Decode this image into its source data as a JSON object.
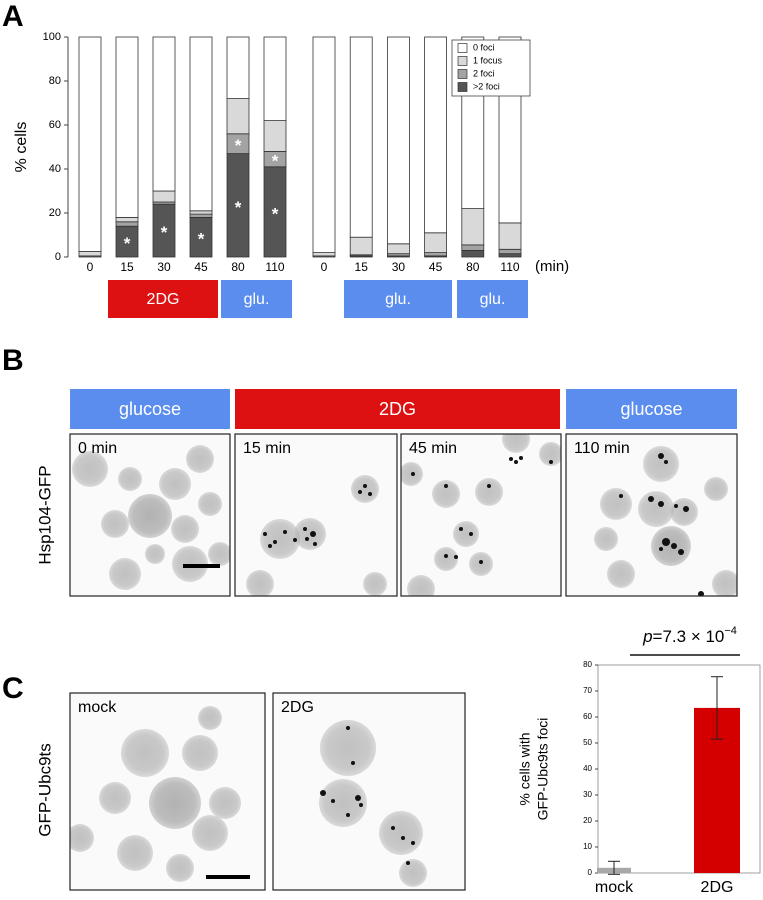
{
  "panel_labels": {
    "a": "A",
    "b": "B",
    "c": "C"
  },
  "chart_data": [
    {
      "type": "stacked_bar",
      "ylabel": "% cells",
      "categories": [
        "0",
        "15",
        "30",
        "45",
        "80",
        "110"
      ],
      "ylim": [
        0,
        100
      ],
      "yticks": [
        0,
        20,
        40,
        60,
        80,
        100
      ],
      "series": [
        {
          "color": "#ffffff",
          "values": [
            97.5,
            82,
            70,
            79,
            28,
            38
          ]
        },
        {
          "color": "#d9d9d9",
          "values": [
            2,
            2,
            5,
            1.5,
            16,
            14
          ]
        },
        {
          "color": "#a3a3a3",
          "values": [
            0.5,
            2,
            1,
            1.5,
            9,
            7
          ],
          "significance": [
            null,
            null,
            null,
            null,
            "*",
            "*"
          ]
        },
        {
          "color": "#555555",
          "values": [
            0,
            14,
            24,
            18,
            47,
            41
          ],
          "significance": [
            null,
            "*",
            "*",
            "*",
            "*",
            "*"
          ]
        }
      ],
      "conditions": [
        {
          "label": "2DG",
          "color": "#dd1111"
        },
        {
          "label": "glu.",
          "color": "#5b8def"
        }
      ]
    },
    {
      "type": "stacked_bar",
      "xlabel": "(min)",
      "categories": [
        "0",
        "15",
        "30",
        "45",
        "80",
        "110"
      ],
      "ylim": [
        0,
        100
      ],
      "legend": "upper right",
      "series": [
        {
          "name": "0 foci",
          "color": "#ffffff",
          "values": [
            98,
            91,
            94,
            89,
            78,
            84.5
          ]
        },
        {
          "name": "1 focus",
          "color": "#d9d9d9",
          "values": [
            1.5,
            8,
            4.5,
            9,
            16.5,
            12
          ]
        },
        {
          "name": "2 foci",
          "color": "#a3a3a3",
          "values": [
            0.5,
            0.5,
            1,
            1.5,
            2.5,
            2
          ]
        },
        {
          "name": ">2 foci",
          "color": "#555555",
          "values": [
            0,
            0.5,
            0.5,
            0.5,
            3,
            1.5
          ]
        }
      ],
      "conditions": [
        {
          "label": "glu.",
          "color": "#5b8def"
        },
        {
          "label": "glu.",
          "color": "#5b8def"
        }
      ]
    },
    {
      "type": "bar",
      "ylabel": [
        "% cells with",
        "GFP-Ubc9ts foci"
      ],
      "annotation": {
        "italic": "p",
        "text": "=7.3 × 10",
        "exponent": "−4"
      },
      "categories": [
        "mock",
        "2DG"
      ],
      "values": [
        2,
        63.5
      ],
      "errors": [
        2.5,
        12
      ],
      "colors": [
        "#a8a8a8",
        "#d40000"
      ],
      "ylim": [
        0,
        80
      ],
      "yticks": [
        0,
        10,
        20,
        30,
        40,
        50,
        60,
        70,
        80
      ]
    }
  ],
  "panel_b": {
    "ylabel": "Hsp104-GFP",
    "headers": [
      {
        "label": "glucose",
        "color": "#5b8def"
      },
      {
        "label": "2DG",
        "color": "#dd1111"
      },
      {
        "label": "glucose",
        "color": "#5b8def"
      }
    ],
    "images": [
      "0 min",
      "15 min",
      "45 min",
      "110 min"
    ]
  },
  "panel_c": {
    "ylabel": "GFP-Ubc9ts",
    "images": [
      "mock",
      "2DG"
    ]
  }
}
